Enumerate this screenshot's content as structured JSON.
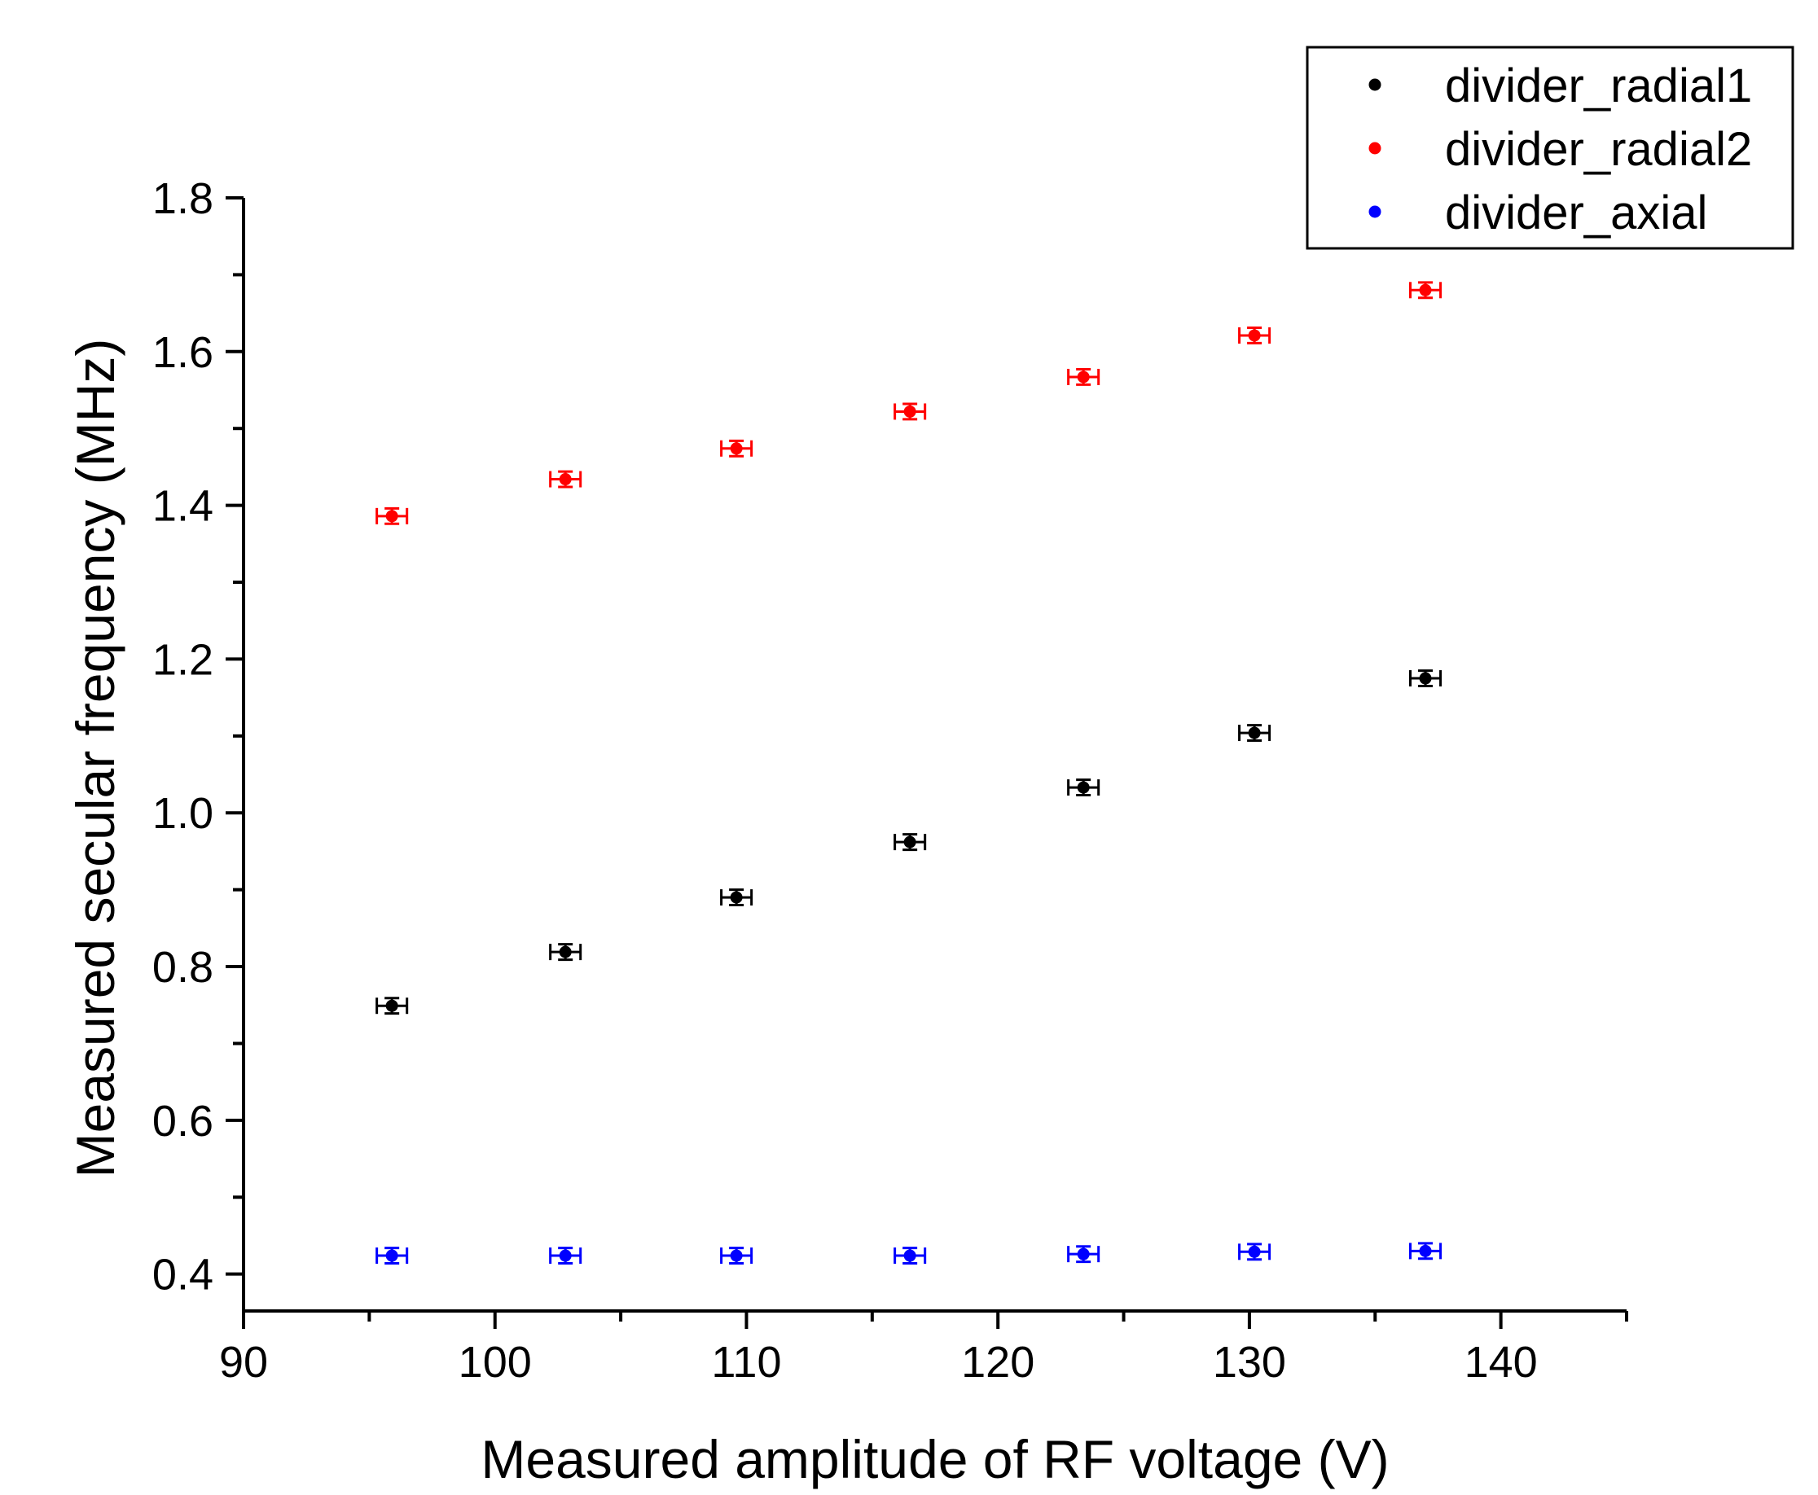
{
  "chart_data": {
    "type": "scatter",
    "title": "",
    "xlabel": "Measured amplitude of RF voltage (V)",
    "ylabel": "Measured secular frequency (MHz)",
    "xlim": [
      90,
      145
    ],
    "ylim": [
      0.352,
      1.8
    ],
    "x_ticks": [
      90,
      100,
      110,
      120,
      130,
      140
    ],
    "x_tick_labels": [
      "90",
      "100",
      "110",
      "120",
      "130",
      "140"
    ],
    "y_ticks": [
      0.4,
      0.6,
      0.8,
      1.0,
      1.2,
      1.4,
      1.6,
      1.8
    ],
    "y_tick_labels": [
      "0.4",
      "0.6",
      "0.8",
      "1.0",
      "1.2",
      "1.4",
      "1.6",
      "1.8"
    ],
    "grid": false,
    "legend_position": "top-right",
    "x": [
      95.9,
      102.8,
      109.6,
      116.5,
      123.4,
      130.2,
      137.0
    ],
    "x_error": [
      0.6,
      0.6,
      0.6,
      0.6,
      0.6,
      0.6,
      0.6
    ],
    "series": [
      {
        "name": "divider_radial1",
        "color": "#000000",
        "values": [
          0.749,
          0.819,
          0.89,
          0.962,
          1.033,
          1.104,
          1.175
        ],
        "y_error": [
          0.01,
          0.01,
          0.01,
          0.01,
          0.01,
          0.01,
          0.01
        ]
      },
      {
        "name": "divider_radial2",
        "color": "#ff0000",
        "values": [
          1.386,
          1.434,
          1.474,
          1.522,
          1.567,
          1.621,
          1.68
        ],
        "y_error": [
          0.01,
          0.01,
          0.01,
          0.01,
          0.01,
          0.01,
          0.01
        ]
      },
      {
        "name": "divider_axial",
        "color": "#0000ff",
        "values": [
          0.424,
          0.424,
          0.424,
          0.424,
          0.426,
          0.429,
          0.43
        ],
        "y_error": [
          0.01,
          0.01,
          0.01,
          0.01,
          0.01,
          0.01,
          0.01
        ]
      }
    ]
  }
}
